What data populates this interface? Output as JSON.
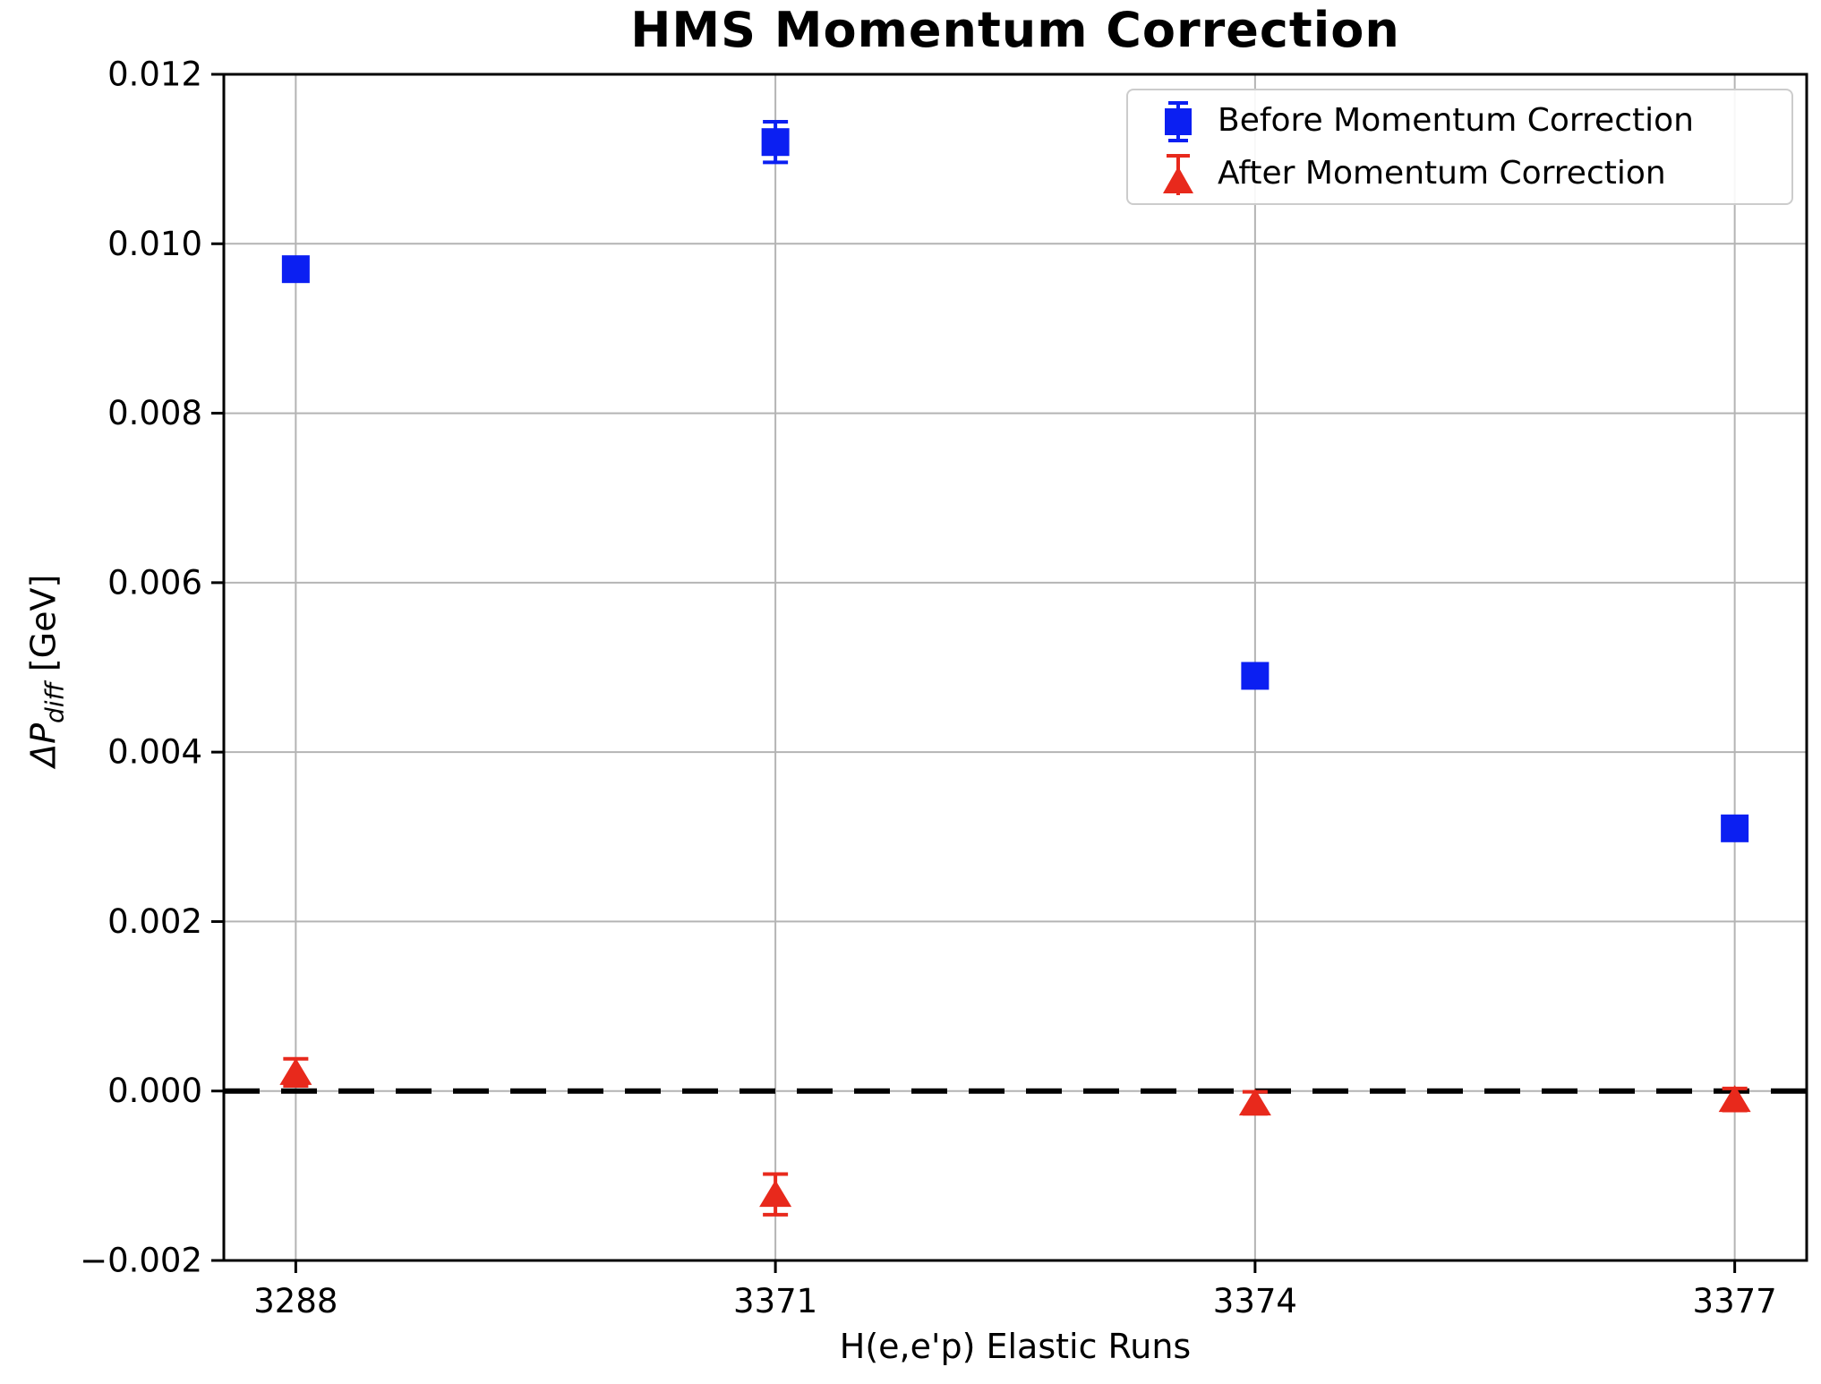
{
  "title": "HMS Momentum Correction",
  "axes": {
    "xlabel": "H(e,e'p) Elastic Runs",
    "ylabel_main": "ΔP",
    "ylabel_sub": "diff",
    "ylabel_unit": " [GeV]",
    "x_tick_labels": [
      "3288",
      "3371",
      "3374",
      "3377"
    ],
    "y_tick_labels": [
      "0.012",
      "0.010",
      "0.008",
      "0.006",
      "0.004",
      "0.002",
      "0.000",
      "−0.002"
    ],
    "y_ticks": [
      0.012,
      0.01,
      0.008,
      0.006,
      0.004,
      0.002,
      0.0,
      -0.002
    ],
    "ylim": [
      -0.002,
      0.012
    ],
    "xlim": [
      -0.15,
      3.15
    ],
    "grid": true
  },
  "chart_data": {
    "type": "scatter",
    "title": "HMS Momentum Correction",
    "xlabel": "H(e,e'p) Elastic Runs",
    "ylabel": "ΔP_diff [GeV]",
    "categories": [
      "3288",
      "3371",
      "3374",
      "3377"
    ],
    "x_positions": [
      0,
      1,
      2,
      3
    ],
    "ylim": [
      -0.002,
      0.012
    ],
    "grid": true,
    "legend_position": "upper right",
    "zero_line": {
      "y": 0.0,
      "style": "dashed",
      "color": "#000000"
    },
    "series": [
      {
        "name": "Before Momentum Correction",
        "marker": "square",
        "color": "#0b1ff2",
        "values": [
          0.0097,
          0.0112,
          0.0049,
          0.0031
        ],
        "errors": [
          0.00012,
          0.00024,
          0.00012,
          0.00012
        ]
      },
      {
        "name": "After Momentum Correction",
        "marker": "triangle-up",
        "color": "#e8291c",
        "values": [
          0.00022,
          -0.00122,
          -0.00014,
          -0.0001
        ],
        "errors": [
          0.00016,
          0.00024,
          0.00013,
          0.00013
        ]
      }
    ]
  },
  "legend": {
    "items": [
      {
        "label": "Before Momentum Correction",
        "marker": "square-errorbar"
      },
      {
        "label": "After Momentum Correction",
        "marker": "triangle-errorbar"
      }
    ]
  },
  "colors": {
    "grid": "#b4b4b4",
    "spine": "#000000",
    "tick_text": "#000000",
    "background": "#ffffff",
    "before": "#0b1ff2",
    "after": "#e8291c"
  }
}
